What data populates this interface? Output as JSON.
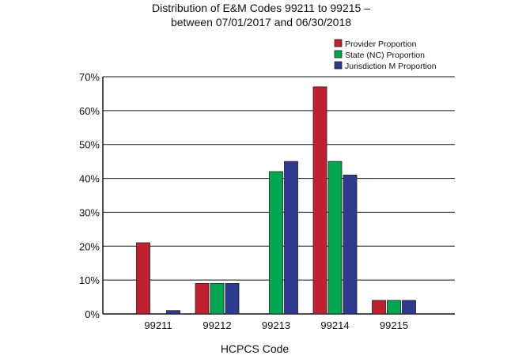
{
  "chart_data": {
    "type": "bar",
    "title": [
      "Distribution of E&M Codes 99211 to 99215 –",
      "between 07/01/2017 and 06/30/2018"
    ],
    "xlabel": "HCPCS Code",
    "ylabel": "",
    "categories": [
      "99211",
      "99212",
      "99213",
      "99214",
      "99215"
    ],
    "series": [
      {
        "name": "Provider Proportion",
        "color": "#c0202f",
        "values": [
          21,
          9,
          0,
          67,
          4
        ]
      },
      {
        "name": "State (NC) Proportion",
        "color": "#00a651",
        "values": [
          0,
          9,
          42,
          45,
          4
        ]
      },
      {
        "name": "Jurisdiction M Proportion",
        "color": "#2e3a8f",
        "values": [
          1,
          9,
          45,
          41,
          4
        ]
      }
    ],
    "ylim": [
      0,
      70
    ],
    "yticks": [
      "0%",
      "10%",
      "20%",
      "30%",
      "40%",
      "50%",
      "60%",
      "70%"
    ],
    "grid": true,
    "legend_position": "top-right"
  }
}
